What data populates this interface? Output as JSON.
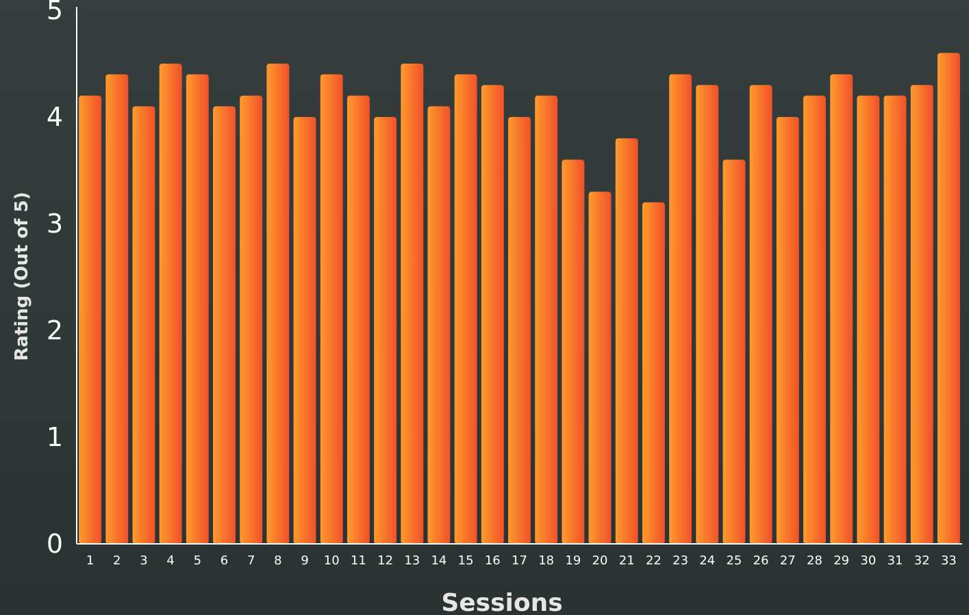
{
  "chart_data": {
    "type": "bar",
    "title": "",
    "xlabel": "Sessions",
    "ylabel": "Rating (Out of 5)",
    "ylim": [
      0,
      5
    ],
    "yticks": [
      "0",
      "1",
      "2",
      "3",
      "4",
      "5"
    ],
    "grid": false,
    "legend": "none",
    "categories": [
      "1",
      "2",
      "3",
      "4",
      "5",
      "6",
      "7",
      "8",
      "9",
      "10",
      "11",
      "12",
      "13",
      "14",
      "15",
      "16",
      "17",
      "18",
      "19",
      "20",
      "21",
      "22",
      "23",
      "24",
      "25",
      "26",
      "27",
      "28",
      "29",
      "30",
      "31",
      "32",
      "33"
    ],
    "values": [
      4.2,
      4.4,
      4.1,
      4.5,
      4.4,
      4.1,
      4.2,
      4.5,
      4.0,
      4.4,
      4.2,
      4.0,
      4.5,
      4.1,
      4.4,
      4.3,
      4.0,
      4.2,
      3.6,
      3.3,
      3.8,
      3.2,
      4.4,
      4.3,
      3.6,
      4.3,
      4.0,
      4.2,
      4.4,
      4.2,
      4.2,
      4.3,
      4.6
    ],
    "colors": {
      "background": "#323a3a",
      "bar_light": "#ff9a2c",
      "bar_dark": "#f0512a",
      "axis": "#ffffff",
      "text": "#ffffff",
      "axis_title": "#e6e6e6"
    }
  }
}
